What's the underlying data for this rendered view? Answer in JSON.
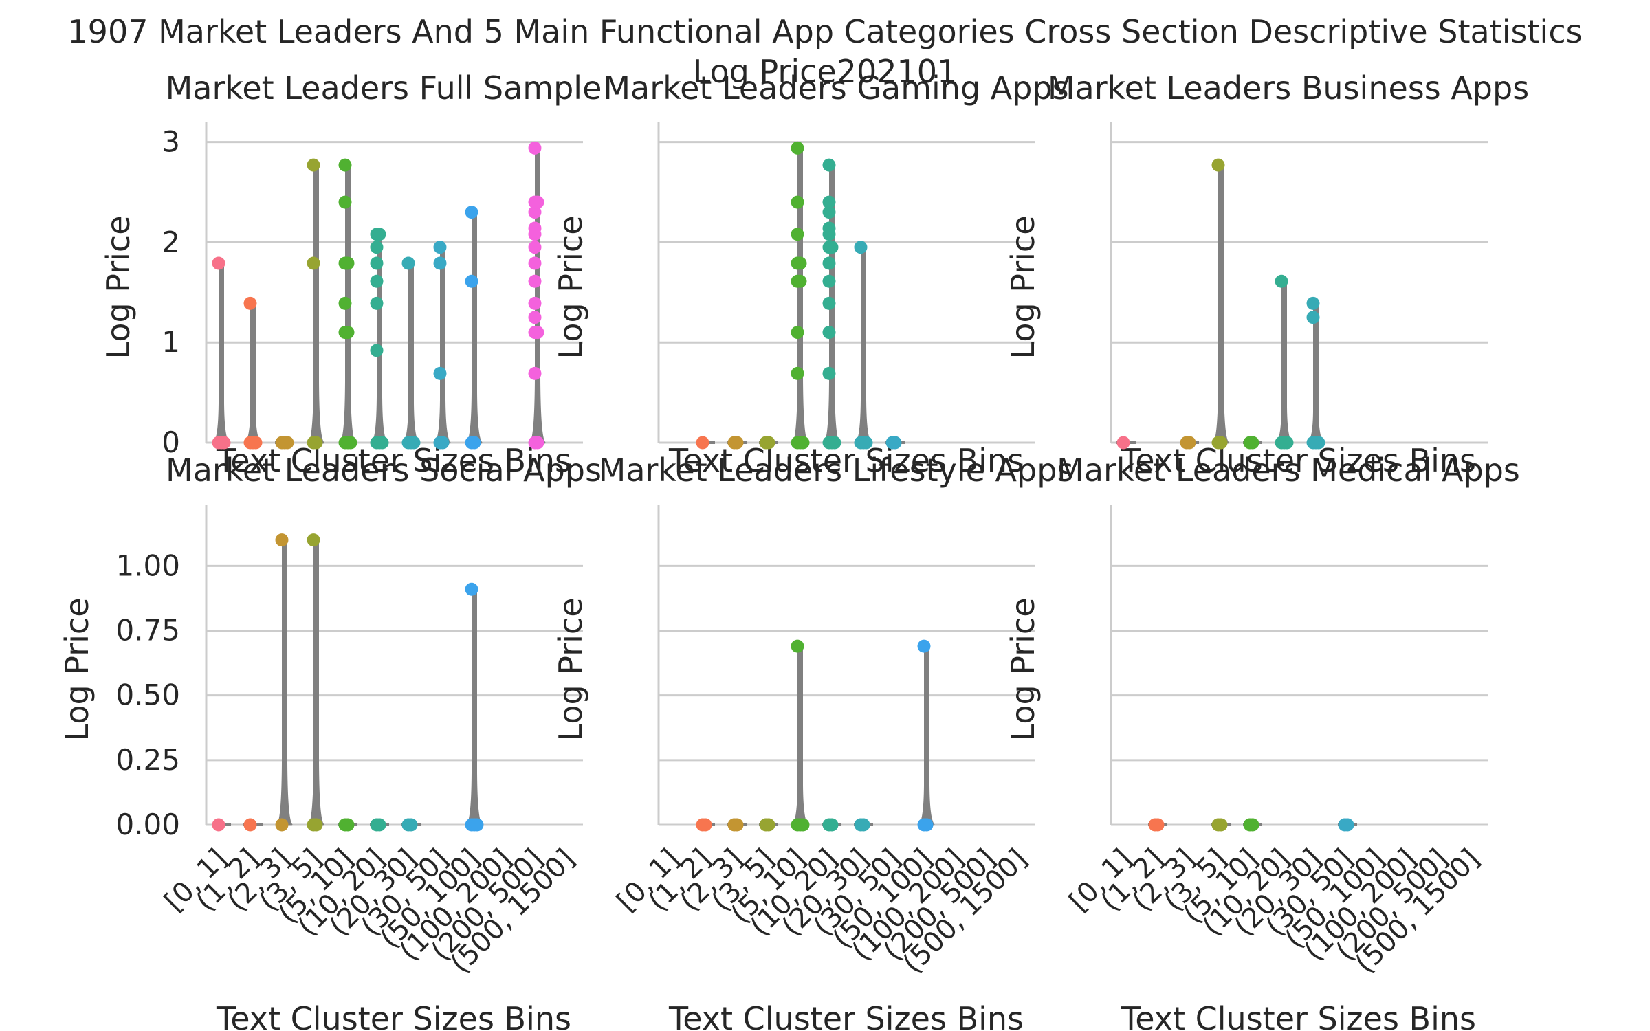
{
  "figure": {
    "title_line1": "1907 Market Leaders And 5 Main Functional App Categories Cross Section Descriptive Statistics",
    "title_line2": "Log Price202101"
  },
  "colors": {
    "grid": "#cccccc",
    "axis": "#cccccc",
    "violin": "#808080",
    "categories": [
      "#f77189",
      "#f7754f",
      "#dc8932",
      "#c39532",
      "#ae9d31",
      "#97a431",
      "#77ab31",
      "#33b07a",
      "#34ae91",
      "#36ada4",
      "#37abb5",
      "#39a9c5",
      "#3ba3ec",
      "#a48cf4",
      "#f461dd"
    ]
  },
  "chart_data": [
    {
      "type": "strip-violin",
      "panel": "full",
      "title": "Market Leaders Full Sample",
      "xlabel": "Text Cluster Sizes Bins",
      "ylabel": "Log Price",
      "ylim": [
        0,
        3.1
      ],
      "yticks": [
        "0",
        "1",
        "2",
        "3"
      ],
      "ytick_values": [
        0,
        1,
        2,
        3
      ],
      "categories": [
        "[0, 1]",
        "(1, 2]",
        "(2, 3]",
        "(3, 5]",
        "(5, 10]",
        "(10, 20]",
        "(20, 30]",
        "(30, 50]",
        "(50, 100]",
        "(100, 200]",
        "(200, 500]",
        "(500, 1500]"
      ],
      "groups": [
        {
          "category": "[0, 1]",
          "color": "#f77189",
          "points": [
            0,
            0,
            0,
            1.79
          ]
        },
        {
          "category": "(1, 2]",
          "color": "#f7754f",
          "points": [
            0,
            0,
            0,
            1.39
          ]
        },
        {
          "category": "(2, 3]",
          "color": "#c39532",
          "points": [
            0,
            0,
            0
          ]
        },
        {
          "category": "(3, 5]",
          "color": "#97a431",
          "points": [
            0,
            0,
            1.79,
            2.77
          ]
        },
        {
          "category": "(5, 10]",
          "color": "#50b131",
          "points": [
            0,
            0,
            0,
            1.1,
            1.1,
            1.39,
            1.79,
            1.79,
            2.4,
            2.77
          ]
        },
        {
          "category": "(10, 20]",
          "color": "#34ae91",
          "points": [
            0,
            0,
            0,
            0.92,
            1.39,
            1.61,
            1.79,
            1.95,
            2.08,
            2.08
          ]
        },
        {
          "category": "(20, 30]",
          "color": "#37abb5",
          "points": [
            0,
            0,
            0,
            1.79
          ]
        },
        {
          "category": "(30, 50]",
          "color": "#39a9c5",
          "points": [
            0,
            0,
            0.69,
            1.79,
            1.95
          ]
        },
        {
          "category": "(50, 100]",
          "color": "#3ba3ec",
          "points": [
            0,
            0,
            1.61,
            2.3
          ]
        },
        {
          "category": "(100, 200]",
          "color": "#f461dd",
          "points": []
        },
        {
          "category": "(200, 500]",
          "color": "#f461dd",
          "points": [
            0,
            0,
            0.69,
            1.1,
            1.1,
            1.25,
            1.39,
            1.61,
            1.79,
            1.95,
            2.08,
            2.14,
            2.3,
            2.4,
            2.4,
            2.94
          ]
        },
        {
          "category": "(500, 1500]",
          "color": "#f461dd",
          "points": []
        }
      ]
    },
    {
      "type": "strip-violin",
      "panel": "gaming",
      "title": "Market Leaders Gaming Apps",
      "xlabel": "Text Cluster Sizes Bins",
      "ylabel": "Log Price",
      "ylim": [
        0,
        3.1
      ],
      "yticks": [],
      "ytick_values": [
        0,
        1,
        2,
        3
      ],
      "categories": [
        "[0, 1]",
        "(1, 2]",
        "(2, 3]",
        "(3, 5]",
        "(5, 10]",
        "(10, 20]",
        "(20, 30]",
        "(30, 50]",
        "(50, 100]",
        "(100, 200]",
        "(200, 500]",
        "(500, 1500]"
      ],
      "groups": [
        {
          "category": "[0, 1]",
          "color": "#f77189",
          "points": []
        },
        {
          "category": "(1, 2]",
          "color": "#f7754f",
          "points": [
            0
          ]
        },
        {
          "category": "(2, 3]",
          "color": "#c39532",
          "points": [
            0,
            0
          ]
        },
        {
          "category": "(3, 5]",
          "color": "#97a431",
          "points": [
            0,
            0
          ]
        },
        {
          "category": "(5, 10]",
          "color": "#50b131",
          "points": [
            0,
            0,
            0,
            0.69,
            1.1,
            1.61,
            1.61,
            1.79,
            1.79,
            2.08,
            2.4,
            2.94
          ]
        },
        {
          "category": "(10, 20]",
          "color": "#34ae91",
          "points": [
            0,
            0,
            0,
            0.69,
            1.1,
            1.39,
            1.61,
            1.79,
            1.95,
            1.95,
            2.08,
            2.14,
            2.3,
            2.4,
            2.77
          ]
        },
        {
          "category": "(20, 30]",
          "color": "#37abb5",
          "points": [
            0,
            0,
            0,
            1.95
          ]
        },
        {
          "category": "(30, 50]",
          "color": "#39a9c5",
          "points": [
            0,
            0
          ]
        },
        {
          "category": "(50, 100]",
          "color": "#3ba3ec",
          "points": []
        },
        {
          "category": "(100, 200]",
          "color": "#f461dd",
          "points": []
        },
        {
          "category": "(200, 500]",
          "color": "#f461dd",
          "points": []
        },
        {
          "category": "(500, 1500]",
          "color": "#f461dd",
          "points": []
        }
      ]
    },
    {
      "type": "strip-violin",
      "panel": "business",
      "title": "Market Leaders Business Apps",
      "xlabel": "Text Cluster Sizes Bins",
      "ylabel": "Log Price",
      "ylim": [
        0,
        3.1
      ],
      "yticks": [],
      "ytick_values": [
        0,
        1,
        2,
        3
      ],
      "categories": [
        "[0, 1]",
        "(1, 2]",
        "(2, 3]",
        "(3, 5]",
        "(5, 10]",
        "(10, 20]",
        "(20, 30]",
        "(30, 50]",
        "(50, 100]",
        "(100, 200]",
        "(200, 500]",
        "(500, 1500]"
      ],
      "groups": [
        {
          "category": "[0, 1]",
          "color": "#f77189",
          "points": [
            0
          ]
        },
        {
          "category": "(1, 2]",
          "color": "#f7754f",
          "points": []
        },
        {
          "category": "(2, 3]",
          "color": "#c39532",
          "points": [
            0,
            0
          ]
        },
        {
          "category": "(3, 5]",
          "color": "#97a431",
          "points": [
            0,
            0,
            2.77
          ]
        },
        {
          "category": "(5, 10]",
          "color": "#50b131",
          "points": [
            0,
            0
          ]
        },
        {
          "category": "(10, 20]",
          "color": "#34ae91",
          "points": [
            0,
            0,
            0,
            1.61
          ]
        },
        {
          "category": "(20, 30]",
          "color": "#37abb5",
          "points": [
            0,
            0,
            0,
            1.25,
            1.39
          ]
        },
        {
          "category": "(30, 50]",
          "color": "#39a9c5",
          "points": []
        },
        {
          "category": "(50, 100]",
          "color": "#3ba3ec",
          "points": []
        },
        {
          "category": "(100, 200]",
          "color": "#f461dd",
          "points": []
        },
        {
          "category": "(200, 500]",
          "color": "#f461dd",
          "points": []
        },
        {
          "category": "(500, 1500]",
          "color": "#f461dd",
          "points": []
        }
      ]
    },
    {
      "type": "strip-violin",
      "panel": "social",
      "title": "Market Leaders Social Apps",
      "xlabel": "Text Cluster Sizes Bins",
      "ylabel": "Log Price",
      "ylim": [
        0,
        1.2
      ],
      "yticks": [
        "0.00",
        "0.25",
        "0.50",
        "0.75",
        "1.00"
      ],
      "ytick_values": [
        0,
        0.25,
        0.5,
        0.75,
        1.0
      ],
      "categories": [
        "[0, 1]",
        "(1, 2]",
        "(2, 3]",
        "(3, 5]",
        "(5, 10]",
        "(10, 20]",
        "(20, 30]",
        "(30, 50]",
        "(50, 100]",
        "(100, 200]",
        "(200, 500]",
        "(500, 1500]"
      ],
      "groups": [
        {
          "category": "[0, 1]",
          "color": "#f77189",
          "points": [
            0
          ]
        },
        {
          "category": "(1, 2]",
          "color": "#f7754f",
          "points": [
            0
          ]
        },
        {
          "category": "(2, 3]",
          "color": "#c39532",
          "points": [
            0,
            1.1
          ]
        },
        {
          "category": "(3, 5]",
          "color": "#97a431",
          "points": [
            0,
            0,
            1.1
          ]
        },
        {
          "category": "(5, 10]",
          "color": "#50b131",
          "points": [
            0,
            0
          ]
        },
        {
          "category": "(10, 20]",
          "color": "#34ae91",
          "points": [
            0,
            0
          ]
        },
        {
          "category": "(20, 30]",
          "color": "#37abb5",
          "points": [
            0,
            0
          ]
        },
        {
          "category": "(30, 50]",
          "color": "#39a9c5",
          "points": []
        },
        {
          "category": "(50, 100]",
          "color": "#3ba3ec",
          "points": [
            0,
            0,
            0,
            0.91
          ]
        },
        {
          "category": "(100, 200]",
          "color": "#f461dd",
          "points": []
        },
        {
          "category": "(200, 500]",
          "color": "#f461dd",
          "points": []
        },
        {
          "category": "(500, 1500]",
          "color": "#f461dd",
          "points": []
        }
      ]
    },
    {
      "type": "strip-violin",
      "panel": "lifestyle",
      "title": "Market Leaders Lifestyle Apps",
      "xlabel": "Text Cluster Sizes Bins",
      "ylabel": "Log Price",
      "ylim": [
        0,
        1.2
      ],
      "yticks": [],
      "ytick_values": [
        0,
        0.25,
        0.5,
        0.75,
        1.0
      ],
      "categories": [
        "[0, 1]",
        "(1, 2]",
        "(2, 3]",
        "(3, 5]",
        "(5, 10]",
        "(10, 20]",
        "(20, 30]",
        "(30, 50]",
        "(50, 100]",
        "(100, 200]",
        "(200, 500]",
        "(500, 1500]"
      ],
      "groups": [
        {
          "category": "[0, 1]",
          "color": "#f77189",
          "points": []
        },
        {
          "category": "(1, 2]",
          "color": "#f7754f",
          "points": [
            0,
            0
          ]
        },
        {
          "category": "(2, 3]",
          "color": "#c39532",
          "points": [
            0,
            0
          ]
        },
        {
          "category": "(3, 5]",
          "color": "#97a431",
          "points": [
            0,
            0
          ]
        },
        {
          "category": "(5, 10]",
          "color": "#50b131",
          "points": [
            0,
            0,
            0,
            0.69
          ]
        },
        {
          "category": "(10, 20]",
          "color": "#34ae91",
          "points": [
            0,
            0
          ]
        },
        {
          "category": "(20, 30]",
          "color": "#37abb5",
          "points": [
            0,
            0
          ]
        },
        {
          "category": "(30, 50]",
          "color": "#39a9c5",
          "points": []
        },
        {
          "category": "(50, 100]",
          "color": "#3ba3ec",
          "points": [
            0,
            0,
            0.69
          ]
        },
        {
          "category": "(100, 200]",
          "color": "#f461dd",
          "points": []
        },
        {
          "category": "(200, 500]",
          "color": "#f461dd",
          "points": []
        },
        {
          "category": "(500, 1500]",
          "color": "#f461dd",
          "points": []
        }
      ]
    },
    {
      "type": "strip-violin",
      "panel": "medical",
      "title": "Market Leaders Medical Apps",
      "xlabel": "Text Cluster Sizes Bins",
      "ylabel": "Log Price",
      "ylim": [
        0,
        1.2
      ],
      "yticks": [],
      "ytick_values": [
        0,
        0.25,
        0.5,
        0.75,
        1.0
      ],
      "categories": [
        "[0, 1]",
        "(1, 2]",
        "(2, 3]",
        "(3, 5]",
        "(5, 10]",
        "(10, 20]",
        "(20, 30]",
        "(30, 50]",
        "(50, 100]",
        "(100, 200]",
        "(200, 500]",
        "(500, 1500]"
      ],
      "groups": [
        {
          "category": "[0, 1]",
          "color": "#f77189",
          "points": []
        },
        {
          "category": "(1, 2]",
          "color": "#f7754f",
          "points": [
            0,
            0
          ]
        },
        {
          "category": "(2, 3]",
          "color": "#c39532",
          "points": []
        },
        {
          "category": "(3, 5]",
          "color": "#97a431",
          "points": [
            0,
            0
          ]
        },
        {
          "category": "(5, 10]",
          "color": "#50b131",
          "points": [
            0,
            0
          ]
        },
        {
          "category": "(10, 20]",
          "color": "#34ae91",
          "points": []
        },
        {
          "category": "(20, 30]",
          "color": "#37abb5",
          "points": []
        },
        {
          "category": "(30, 50]",
          "color": "#39a9c5",
          "points": [
            0,
            0
          ]
        },
        {
          "category": "(50, 100]",
          "color": "#3ba3ec",
          "points": []
        },
        {
          "category": "(100, 200]",
          "color": "#f461dd",
          "points": []
        },
        {
          "category": "(200, 500]",
          "color": "#f461dd",
          "points": []
        },
        {
          "category": "(500, 1500]",
          "color": "#f461dd",
          "points": []
        }
      ]
    }
  ]
}
